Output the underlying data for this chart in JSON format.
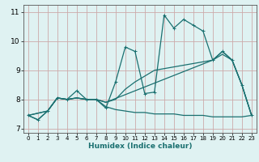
{
  "xlabel": "Humidex (Indice chaleur)",
  "bg_color": "#dff2f2",
  "grid_color": "#ccaaaa",
  "line_color": "#1a7070",
  "xlim": [
    -0.5,
    23.5
  ],
  "ylim": [
    6.85,
    11.25
  ],
  "xticks": [
    0,
    1,
    2,
    3,
    4,
    5,
    6,
    7,
    8,
    9,
    10,
    11,
    12,
    13,
    14,
    15,
    16,
    17,
    18,
    19,
    20,
    21,
    22,
    23
  ],
  "yticks": [
    7,
    8,
    9,
    10,
    11
  ],
  "series_main": {
    "x": [
      0,
      1,
      2,
      3,
      4,
      5,
      6,
      7,
      8,
      9,
      10,
      11,
      12,
      13,
      14,
      15,
      16,
      17,
      18,
      19,
      20,
      21,
      22,
      23
    ],
    "y": [
      7.45,
      7.3,
      7.6,
      8.05,
      8.0,
      8.3,
      8.0,
      8.0,
      7.7,
      8.6,
      9.8,
      9.65,
      8.2,
      8.25,
      10.9,
      10.45,
      10.75,
      10.55,
      10.35,
      9.35,
      9.65,
      9.35,
      8.5,
      7.45
    ]
  },
  "series_flat": {
    "x": [
      0,
      1,
      2,
      3,
      4,
      5,
      6,
      7,
      8,
      9,
      10,
      11,
      12,
      13,
      14,
      15,
      16,
      17,
      18,
      19,
      20,
      21,
      22,
      23
    ],
    "y": [
      7.45,
      7.3,
      7.6,
      8.05,
      8.0,
      8.05,
      8.0,
      8.0,
      7.75,
      7.65,
      7.6,
      7.55,
      7.55,
      7.5,
      7.5,
      7.5,
      7.45,
      7.45,
      7.45,
      7.4,
      7.4,
      7.4,
      7.4,
      7.45
    ]
  },
  "series_diag1": {
    "x": [
      0,
      2,
      3,
      4,
      5,
      6,
      7,
      8,
      9,
      10,
      11,
      12,
      13,
      19,
      20,
      21,
      22,
      23
    ],
    "y": [
      7.45,
      7.6,
      8.05,
      8.0,
      8.05,
      8.0,
      8.0,
      7.9,
      8.0,
      8.35,
      8.6,
      8.8,
      9.0,
      9.35,
      9.55,
      9.35,
      8.5,
      7.45
    ]
  },
  "series_diag2": {
    "x": [
      0,
      2,
      3,
      4,
      5,
      6,
      7,
      8,
      19,
      20,
      21,
      22,
      23
    ],
    "y": [
      7.45,
      7.6,
      8.05,
      8.0,
      8.05,
      8.0,
      8.0,
      7.9,
      9.35,
      9.65,
      9.35,
      8.5,
      7.45
    ]
  }
}
